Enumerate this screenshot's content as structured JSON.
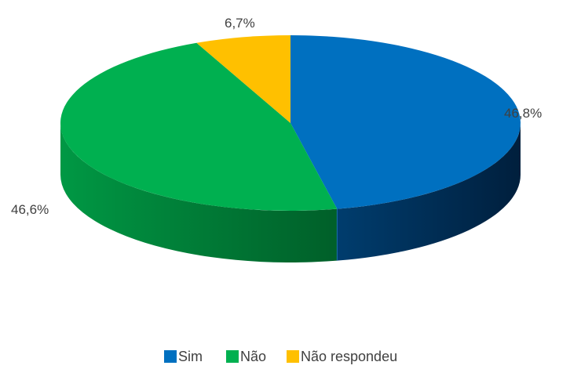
{
  "chart_data": {
    "type": "pie",
    "style": "3d",
    "title": "",
    "legend_position": "bottom",
    "slices": [
      {
        "name": "Sim",
        "value": 46.8,
        "label": "46,8%",
        "color": "#0070C0",
        "side_color": "#002D52"
      },
      {
        "name": "Não",
        "value": 46.6,
        "label": "46,6%",
        "color": "#00B050",
        "side_color": "#006B2E"
      },
      {
        "name": "Não respondeu",
        "value": 6.7,
        "label": "6,7%",
        "color": "#FFC000",
        "side_color": "#B38600"
      }
    ]
  }
}
